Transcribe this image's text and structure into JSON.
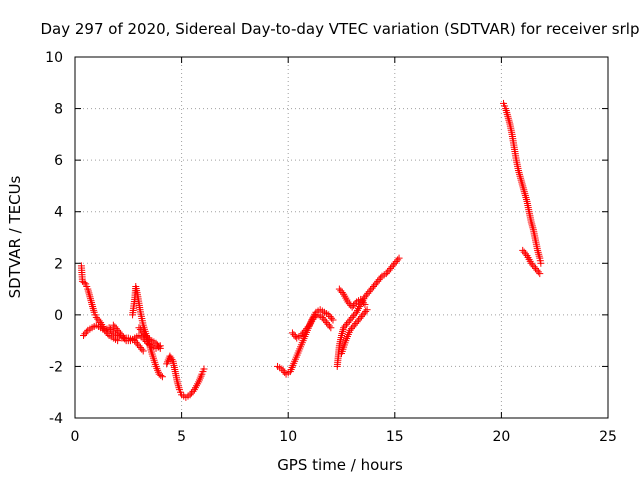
{
  "chart_data": {
    "type": "scatter",
    "title": "Day 297 of 2020, Sidereal Day-to-day VTEC variation (SDTVAR) for receiver srlp",
    "xlabel": "GPS time / hours",
    "ylabel": "SDTVAR / TECUs",
    "xlim": [
      0,
      25
    ],
    "ylim": [
      -4,
      10
    ],
    "xticks": [
      0,
      5,
      10,
      15,
      20,
      25
    ],
    "yticks": [
      -4,
      -2,
      0,
      2,
      4,
      6,
      8,
      10
    ],
    "grid": true,
    "marker": "+",
    "color": "#ff0000",
    "segments": [
      [
        [
          0.3,
          1.9
        ],
        [
          0.35,
          1.3
        ],
        [
          0.5,
          1.2
        ],
        [
          0.6,
          1.0
        ],
        [
          0.7,
          0.7
        ],
        [
          0.8,
          0.4
        ],
        [
          0.9,
          0.1
        ],
        [
          1.0,
          -0.1
        ],
        [
          1.2,
          -0.3
        ],
        [
          1.4,
          -0.6
        ],
        [
          1.6,
          -0.8
        ],
        [
          1.8,
          -0.9
        ],
        [
          2.0,
          -1.0
        ]
      ],
      [
        [
          0.4,
          -0.8
        ],
        [
          0.6,
          -0.6
        ],
        [
          0.8,
          -0.5
        ],
        [
          1.0,
          -0.4
        ],
        [
          1.2,
          -0.5
        ],
        [
          1.4,
          -0.6
        ],
        [
          1.6,
          -0.5
        ],
        [
          1.8,
          -0.7
        ],
        [
          2.0,
          -0.8
        ],
        [
          2.2,
          -0.9
        ],
        [
          2.5,
          -0.9
        ],
        [
          2.8,
          -1.0
        ],
        [
          3.0,
          -1.2
        ],
        [
          3.2,
          -1.4
        ]
      ],
      [
        [
          1.8,
          -0.4
        ],
        [
          2.0,
          -0.6
        ],
        [
          2.2,
          -0.8
        ],
        [
          2.4,
          -1.0
        ],
        [
          2.6,
          -1.0
        ],
        [
          2.8,
          -0.9
        ],
        [
          3.0,
          -0.8
        ],
        [
          3.2,
          -0.9
        ],
        [
          3.4,
          -1.1
        ],
        [
          3.6,
          -1.2
        ],
        [
          3.8,
          -1.3
        ],
        [
          4.0,
          -1.2
        ]
      ],
      [
        [
          2.7,
          0.0
        ],
        [
          2.8,
          0.6
        ],
        [
          2.85,
          1.1
        ],
        [
          2.95,
          0.7
        ],
        [
          3.05,
          0.2
        ],
        [
          3.2,
          -0.4
        ],
        [
          3.35,
          -0.8
        ],
        [
          3.5,
          -1.2
        ],
        [
          3.65,
          -1.6
        ],
        [
          3.8,
          -2.0
        ],
        [
          3.95,
          -2.3
        ],
        [
          4.1,
          -2.4
        ]
      ],
      [
        [
          3.0,
          -0.5
        ],
        [
          3.2,
          -0.7
        ],
        [
          3.4,
          -0.9
        ],
        [
          3.6,
          -1.0
        ],
        [
          3.8,
          -1.1
        ],
        [
          4.0,
          -1.3
        ]
      ],
      [
        [
          4.3,
          -1.9
        ],
        [
          4.45,
          -1.6
        ],
        [
          4.6,
          -1.8
        ],
        [
          4.7,
          -2.2
        ],
        [
          4.8,
          -2.6
        ],
        [
          4.9,
          -2.9
        ],
        [
          5.0,
          -3.1
        ],
        [
          5.2,
          -3.2
        ],
        [
          5.4,
          -3.1
        ],
        [
          5.6,
          -2.9
        ],
        [
          5.8,
          -2.6
        ],
        [
          5.95,
          -2.3
        ],
        [
          6.05,
          -2.1
        ]
      ],
      [
        [
          9.5,
          -2.0
        ],
        [
          9.7,
          -2.1
        ],
        [
          9.9,
          -2.3
        ],
        [
          10.1,
          -2.2
        ],
        [
          10.3,
          -1.8
        ],
        [
          10.5,
          -1.4
        ],
        [
          10.7,
          -1.0
        ],
        [
          10.9,
          -0.6
        ],
        [
          11.1,
          -0.2
        ],
        [
          11.3,
          0.1
        ],
        [
          11.5,
          0.2
        ],
        [
          11.7,
          0.1
        ],
        [
          11.9,
          0.0
        ],
        [
          12.1,
          -0.2
        ]
      ],
      [
        [
          10.2,
          -0.7
        ],
        [
          10.4,
          -0.9
        ],
        [
          10.6,
          -0.8
        ],
        [
          10.8,
          -0.6
        ],
        [
          11.0,
          -0.4
        ],
        [
          11.2,
          -0.1
        ],
        [
          11.4,
          0.0
        ],
        [
          11.6,
          -0.1
        ],
        [
          11.8,
          -0.3
        ],
        [
          12.0,
          -0.5
        ]
      ],
      [
        [
          12.3,
          -2.0
        ],
        [
          12.4,
          -1.2
        ],
        [
          12.5,
          -0.8
        ],
        [
          12.6,
          -0.5
        ],
        [
          12.8,
          -0.3
        ],
        [
          13.0,
          -0.1
        ],
        [
          13.2,
          0.1
        ],
        [
          13.4,
          0.4
        ],
        [
          13.6,
          0.7
        ],
        [
          13.8,
          0.9
        ],
        [
          14.0,
          1.1
        ],
        [
          14.2,
          1.3
        ],
        [
          14.4,
          1.5
        ],
        [
          14.6,
          1.6
        ],
        [
          14.8,
          1.8
        ],
        [
          15.0,
          2.0
        ],
        [
          15.2,
          2.2
        ]
      ],
      [
        [
          12.4,
          1.0
        ],
        [
          12.6,
          0.8
        ],
        [
          12.8,
          0.5
        ],
        [
          13.0,
          0.3
        ],
        [
          13.2,
          0.5
        ],
        [
          13.4,
          0.6
        ],
        [
          13.6,
          0.4
        ]
      ],
      [
        [
          12.5,
          -1.5
        ],
        [
          12.7,
          -1.0
        ],
        [
          12.9,
          -0.6
        ],
        [
          13.1,
          -0.4
        ],
        [
          13.3,
          -0.2
        ],
        [
          13.5,
          0.0
        ],
        [
          13.7,
          0.2
        ]
      ],
      [
        [
          20.1,
          8.2
        ],
        [
          20.2,
          8.0
        ],
        [
          20.3,
          7.7
        ],
        [
          20.4,
          7.4
        ],
        [
          20.5,
          7.0
        ],
        [
          20.6,
          6.5
        ],
        [
          20.7,
          6.0
        ],
        [
          20.8,
          5.6
        ],
        [
          20.9,
          5.3
        ],
        [
          21.0,
          5.0
        ],
        [
          21.1,
          4.7
        ],
        [
          21.2,
          4.4
        ],
        [
          21.3,
          4.0
        ],
        [
          21.4,
          3.6
        ],
        [
          21.5,
          3.3
        ],
        [
          21.6,
          2.9
        ],
        [
          21.7,
          2.5
        ],
        [
          21.8,
          2.2
        ],
        [
          21.85,
          2.0
        ]
      ],
      [
        [
          21.0,
          2.5
        ],
        [
          21.2,
          2.3
        ],
        [
          21.4,
          2.0
        ],
        [
          21.6,
          1.8
        ],
        [
          21.8,
          1.6
        ]
      ]
    ]
  }
}
